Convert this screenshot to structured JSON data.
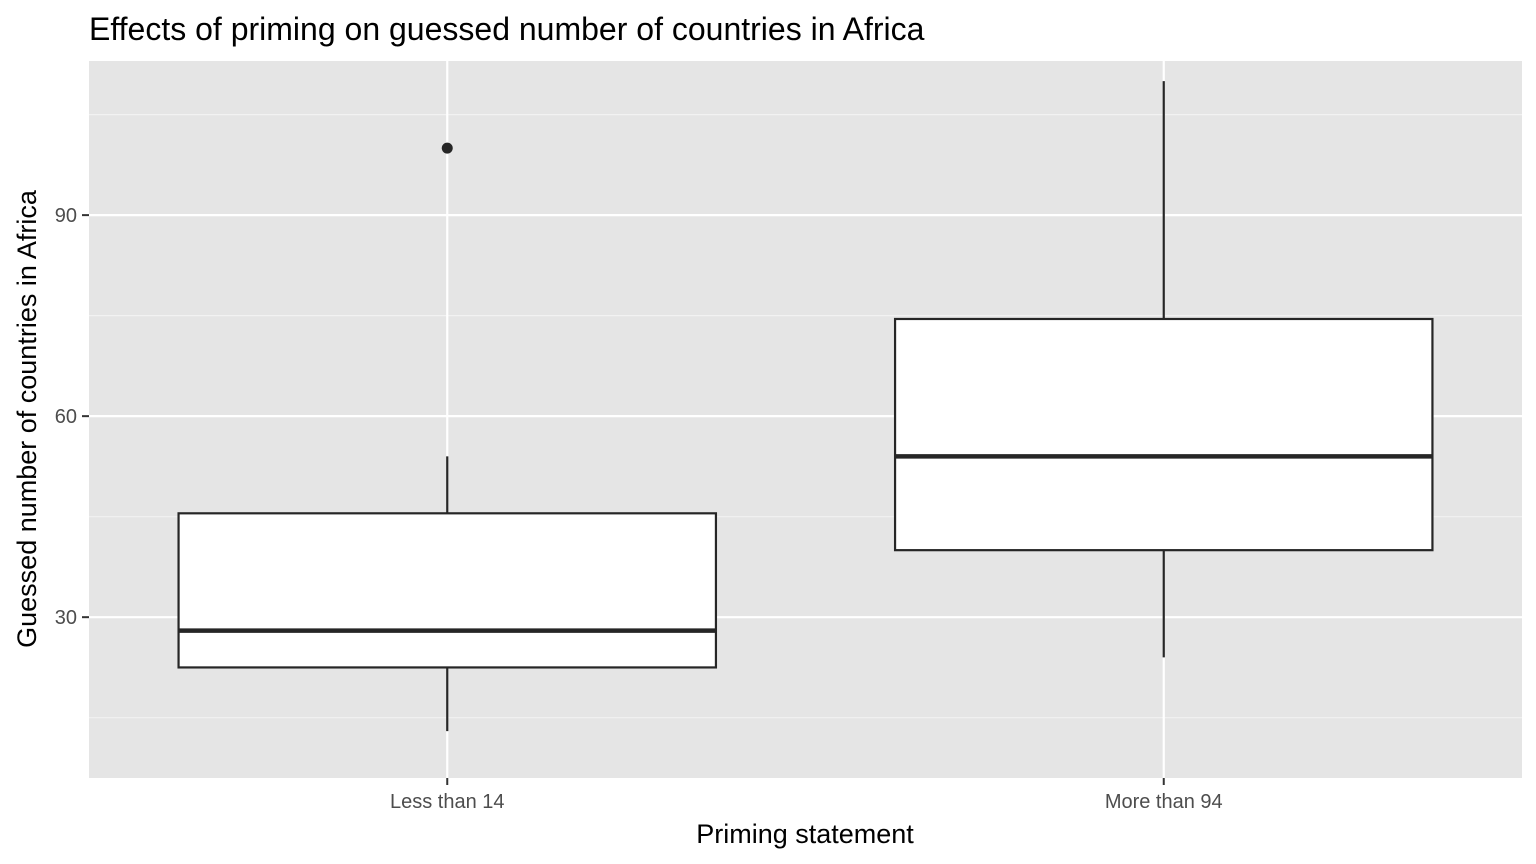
{
  "chart_data": {
    "type": "boxplot",
    "title": "Effects of priming on guessed number of countries in Africa",
    "xlabel": "Priming statement",
    "ylabel": "Guessed number of countries in Africa",
    "ylim": [
      6,
      113
    ],
    "y_major_ticks": [
      30,
      60,
      90
    ],
    "y_minor_ticks": [
      15,
      45,
      75,
      105
    ],
    "grid": true,
    "legend": "none",
    "categories": [
      "Less than 14",
      "More than 94"
    ],
    "boxes": [
      {
        "category": "Less than 14",
        "whisker_low": 13,
        "q1": 22.5,
        "median": 28,
        "q3": 45.5,
        "whisker_high": 54,
        "outliers": [
          100
        ]
      },
      {
        "category": "More than 94",
        "whisker_low": 24,
        "q1": 40,
        "median": 54,
        "q3": 74.5,
        "whisker_high": 110,
        "outliers": []
      }
    ],
    "colors": {
      "panel_background": "#e5e5e5",
      "grid_major": "#ffffff",
      "grid_minor": "#f2f2f2",
      "box_fill": "#ffffff",
      "box_stroke": "#262626",
      "tick_text": "#4d4d4d"
    }
  }
}
